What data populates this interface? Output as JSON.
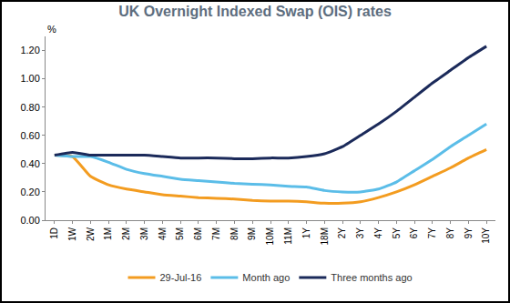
{
  "chart_data": {
    "type": "line",
    "title": "UK Overnight Indexed Swap (OIS) rates",
    "ylabel": "%",
    "categories": [
      "1D",
      "1W",
      "2W",
      "1M",
      "2M",
      "3M",
      "4M",
      "5M",
      "6M",
      "7M",
      "8M",
      "9M",
      "10M",
      "11M",
      "1Y",
      "18M",
      "2Y",
      "3Y",
      "4Y",
      "5Y",
      "6Y",
      "7Y",
      "8Y",
      "9Y",
      "10Y"
    ],
    "series": [
      {
        "name": "29-Jul-16",
        "color": "#f39c20",
        "values": [
          0.46,
          0.45,
          0.31,
          0.25,
          0.22,
          0.2,
          0.18,
          0.17,
          0.16,
          0.155,
          0.15,
          0.14,
          0.135,
          0.135,
          0.13,
          0.12,
          0.12,
          0.13,
          0.16,
          0.2,
          0.25,
          0.31,
          0.37,
          0.44,
          0.5
        ]
      },
      {
        "name": "Month ago",
        "color": "#5bbde8",
        "values": [
          0.46,
          0.45,
          0.45,
          0.41,
          0.36,
          0.33,
          0.31,
          0.29,
          0.28,
          0.27,
          0.26,
          0.255,
          0.25,
          0.24,
          0.235,
          0.21,
          0.2,
          0.2,
          0.22,
          0.27,
          0.35,
          0.43,
          0.52,
          0.6,
          0.68
        ]
      },
      {
        "name": "Three months ago",
        "color": "#1b2a5a",
        "values": [
          0.46,
          0.48,
          0.46,
          0.46,
          0.46,
          0.46,
          0.45,
          0.44,
          0.44,
          0.44,
          0.435,
          0.435,
          0.44,
          0.44,
          0.45,
          0.47,
          0.52,
          0.6,
          0.68,
          0.77,
          0.87,
          0.97,
          1.06,
          1.15,
          1.23
        ]
      }
    ],
    "ylim": [
      0,
      1.3
    ],
    "yticks": [
      {
        "value": 0,
        "label": "0.00"
      },
      {
        "value": 0.2,
        "label": "0.20"
      },
      {
        "value": 0.4,
        "label": "0.40"
      },
      {
        "value": 0.6,
        "label": "0.60"
      },
      {
        "value": 0.8,
        "label": "0.80"
      },
      {
        "value": 1.0,
        "label": "1.00"
      },
      {
        "value": 1.2,
        "label": "1.20"
      }
    ],
    "grid": false,
    "legend": "bottom"
  }
}
